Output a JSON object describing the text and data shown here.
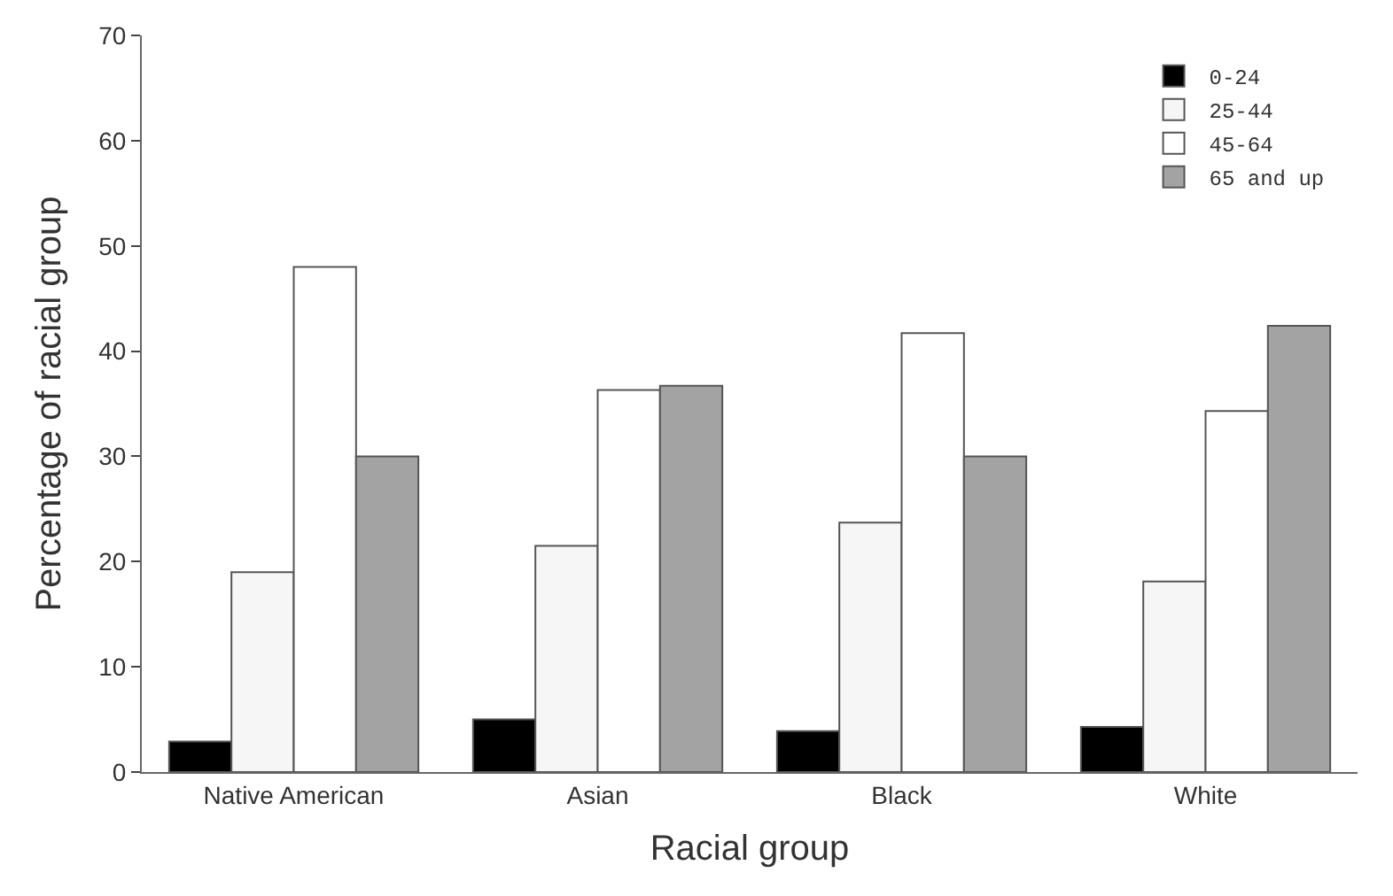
{
  "chart_data": {
    "type": "bar",
    "xlabel": "Racial group",
    "ylabel": "Percentage of racial group",
    "categories": [
      "Native American",
      "Asian",
      "Black",
      "White"
    ],
    "series": [
      {
        "name": "0-24",
        "color": "#000000",
        "values": [
          2.9,
          5.0,
          3.9,
          4.3
        ]
      },
      {
        "name": "25-44",
        "color": "#f6f6f6",
        "values": [
          19.0,
          21.5,
          23.7,
          18.1
        ]
      },
      {
        "name": "45-64",
        "color": "#ffffff",
        "values": [
          48.0,
          36.3,
          41.7,
          34.3
        ]
      },
      {
        "name": "65 and up",
        "color": "#a3a3a3",
        "values": [
          30.0,
          36.7,
          30.0,
          42.4
        ]
      }
    ],
    "ylim": [
      0,
      70
    ],
    "yticks": [
      0,
      10,
      20,
      30,
      40,
      50,
      60,
      70
    ],
    "legend": "top right"
  }
}
